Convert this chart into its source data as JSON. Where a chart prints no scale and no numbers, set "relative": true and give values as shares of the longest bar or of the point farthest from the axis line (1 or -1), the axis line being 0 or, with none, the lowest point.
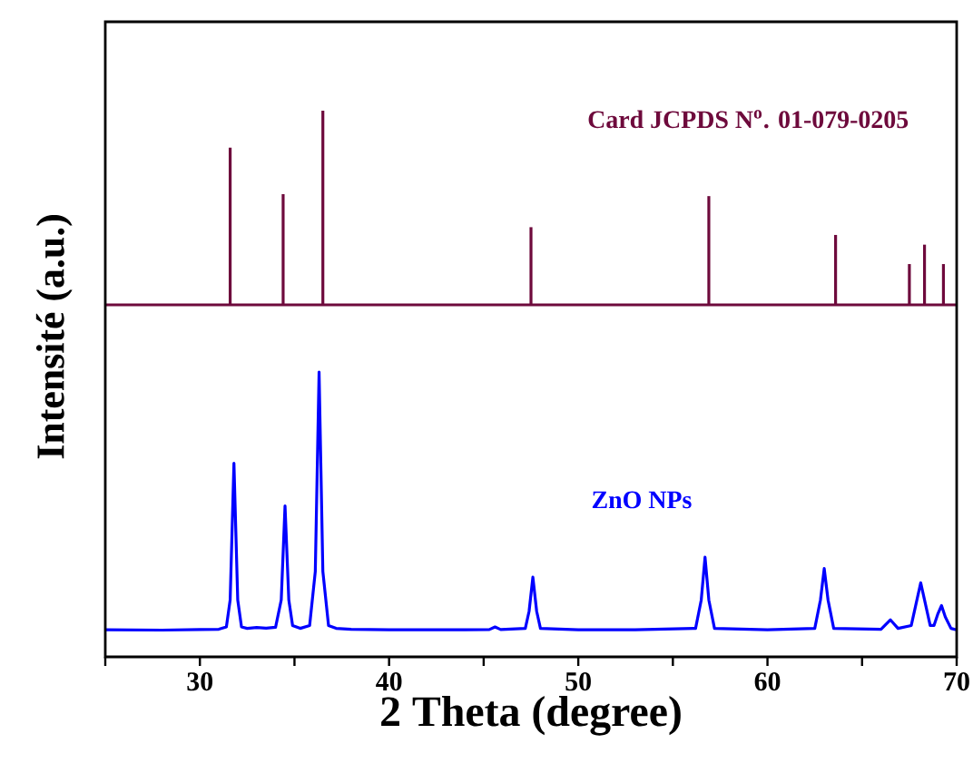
{
  "chart_data": [
    {
      "type": "bar",
      "relative": true,
      "xlim": [
        25,
        70
      ],
      "tick_labels": false,
      "series": [
        {
          "name": "Card JCPDS N$^{o}$. 01-079-0205",
          "color": "#6e0a3c",
          "x": [
            31.6,
            34.4,
            36.5,
            47.5,
            56.9,
            63.6,
            67.5,
            68.3,
            69.3
          ],
          "values": [
            0.81,
            0.57,
            1,
            0.4,
            0.56,
            0.36,
            0.21,
            0.31,
            0.21
          ]
        }
      ]
    },
    {
      "type": "line",
      "relative": true,
      "xlim": [
        25,
        70
      ],
      "tick_labels": "x",
      "xlabel": "2 Theta (degree)",
      "ylabel": "Intensité (a.u.)",
      "xticks": [
        {
          "value": 25,
          "label": null
        },
        30,
        {
          "value": 35,
          "label": null
        },
        40,
        {
          "value": 45,
          "label": null
        },
        50,
        {
          "value": 55,
          "label": null
        },
        60,
        {
          "value": 65,
          "label": null
        },
        70
      ],
      "series": [
        {
          "name": "ZnO NPs",
          "color": "#0000ff",
          "x": [
            25,
            28,
            30,
            31.0,
            31.4,
            31.6,
            31.8,
            32.0,
            32.2,
            32.5,
            33,
            33.5,
            34.0,
            34.3,
            34.5,
            34.7,
            34.9,
            35.3,
            35.8,
            36.1,
            36.3,
            36.5,
            36.8,
            37.2,
            38,
            40,
            42,
            44,
            45.3,
            45.6,
            45.9,
            47.2,
            47.4,
            47.6,
            47.8,
            48.0,
            50,
            53,
            56.2,
            56.5,
            56.7,
            56.9,
            57.2,
            60,
            62.5,
            62.8,
            63.0,
            63.2,
            63.5,
            66,
            66.5,
            66.9,
            67.6,
            67.9,
            68.1,
            68.3,
            68.6,
            68.8,
            69.0,
            69.2,
            69.4,
            69.7,
            70
          ],
          "values": [
            0.095,
            0.094,
            0.096,
            0.097,
            0.105,
            0.2,
            0.68,
            0.2,
            0.105,
            0.1,
            0.103,
            0.101,
            0.104,
            0.2,
            0.53,
            0.2,
            0.11,
            0.1,
            0.11,
            0.3,
            1,
            0.3,
            0.11,
            0.1,
            0.097,
            0.095,
            0.095,
            0.095,
            0.096,
            0.105,
            0.096,
            0.1,
            0.16,
            0.28,
            0.16,
            0.1,
            0.095,
            0.095,
            0.1,
            0.2,
            0.35,
            0.2,
            0.1,
            0.095,
            0.1,
            0.2,
            0.31,
            0.2,
            0.1,
            0.097,
            0.13,
            0.1,
            0.11,
            0.2,
            0.26,
            0.2,
            0.11,
            0.11,
            0.15,
            0.18,
            0.14,
            0.1,
            0.095
          ]
        }
      ]
    }
  ]
}
